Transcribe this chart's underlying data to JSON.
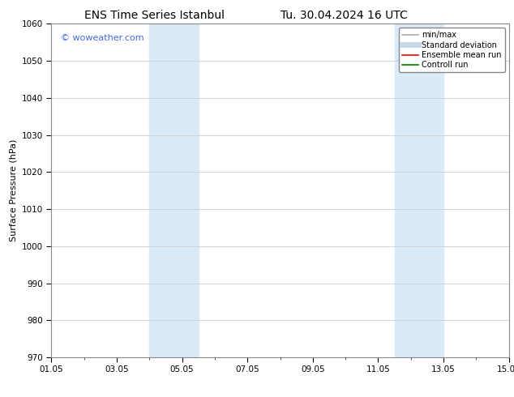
{
  "title_left": "ENS Time Series Istanbul",
  "title_right": "Tu. 30.04.2024 16 UTC",
  "ylabel": "Surface Pressure (hPa)",
  "ylim": [
    970,
    1060
  ],
  "yticks": [
    970,
    980,
    990,
    1000,
    1010,
    1020,
    1030,
    1040,
    1050,
    1060
  ],
  "xlim": [
    0,
    14
  ],
  "xtick_labels": [
    "01.05",
    "03.05",
    "05.05",
    "07.05",
    "09.05",
    "11.05",
    "13.05",
    "15.05"
  ],
  "xtick_positions": [
    0,
    2,
    4,
    6,
    8,
    10,
    12,
    14
  ],
  "shaded_bands": [
    {
      "x_start": 3.0,
      "x_end": 4.5
    },
    {
      "x_start": 10.5,
      "x_end": 12.0
    }
  ],
  "shaded_color": "#daeaf7",
  "background_color": "#ffffff",
  "watermark_text": "© woweather.com",
  "watermark_color": "#4169e1",
  "legend_items": [
    {
      "label": "min/max",
      "color": "#aaaaaa",
      "lw": 1.2,
      "linestyle": "-"
    },
    {
      "label": "Standard deviation",
      "color": "#c8d8e8",
      "lw": 5,
      "linestyle": "-"
    },
    {
      "label": "Ensemble mean run",
      "color": "red",
      "lw": 1.2,
      "linestyle": "-"
    },
    {
      "label": "Controll run",
      "color": "green",
      "lw": 1.2,
      "linestyle": "-"
    }
  ],
  "grid_color": "#cccccc",
  "spine_color": "#888888",
  "title_fontsize": 10,
  "tick_fontsize": 7.5,
  "ylabel_fontsize": 8,
  "watermark_fontsize": 8,
  "legend_fontsize": 7
}
